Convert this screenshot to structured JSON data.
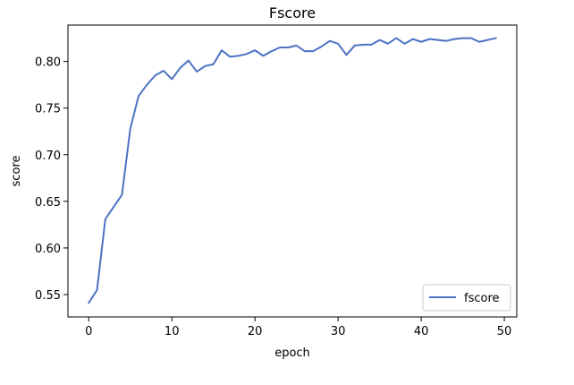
{
  "chart_data": {
    "type": "line",
    "title": "Fscore",
    "xlabel": "epoch",
    "ylabel": "score",
    "xlim": [
      -2.5,
      51.5
    ],
    "ylim": [
      0.526,
      0.839
    ],
    "xticks": [
      0,
      10,
      20,
      30,
      40,
      50
    ],
    "yticks": [
      0.55,
      0.6,
      0.65,
      0.7,
      0.75,
      0.8
    ],
    "ytick_labels": [
      "0.55",
      "0.60",
      "0.65",
      "0.70",
      "0.75",
      "0.80"
    ],
    "grid": false,
    "legend": {
      "position": "lower right",
      "entries": [
        "fscore"
      ]
    },
    "series": [
      {
        "name": "fscore",
        "color": "#4c72c4",
        "x": [
          0,
          1,
          2,
          3,
          4,
          5,
          6,
          7,
          8,
          9,
          10,
          11,
          12,
          13,
          14,
          15,
          16,
          17,
          18,
          19,
          20,
          21,
          22,
          23,
          24,
          25,
          26,
          27,
          28,
          29,
          30,
          31,
          32,
          33,
          34,
          35,
          36,
          37,
          38,
          39,
          40,
          41,
          42,
          43,
          44,
          45,
          46,
          47,
          48,
          49
        ],
        "y": [
          0.541,
          0.555,
          0.631,
          0.644,
          0.657,
          0.728,
          0.763,
          0.775,
          0.785,
          0.79,
          0.781,
          0.793,
          0.801,
          0.789,
          0.795,
          0.797,
          0.812,
          0.805,
          0.806,
          0.808,
          0.812,
          0.806,
          0.811,
          0.815,
          0.815,
          0.817,
          0.811,
          0.811,
          0.816,
          0.822,
          0.819,
          0.807,
          0.817,
          0.818,
          0.818,
          0.823,
          0.819,
          0.825,
          0.819,
          0.824,
          0.821,
          0.824,
          0.823,
          0.822,
          0.824,
          0.825,
          0.825,
          0.821,
          0.823,
          0.825
        ]
      }
    ]
  }
}
